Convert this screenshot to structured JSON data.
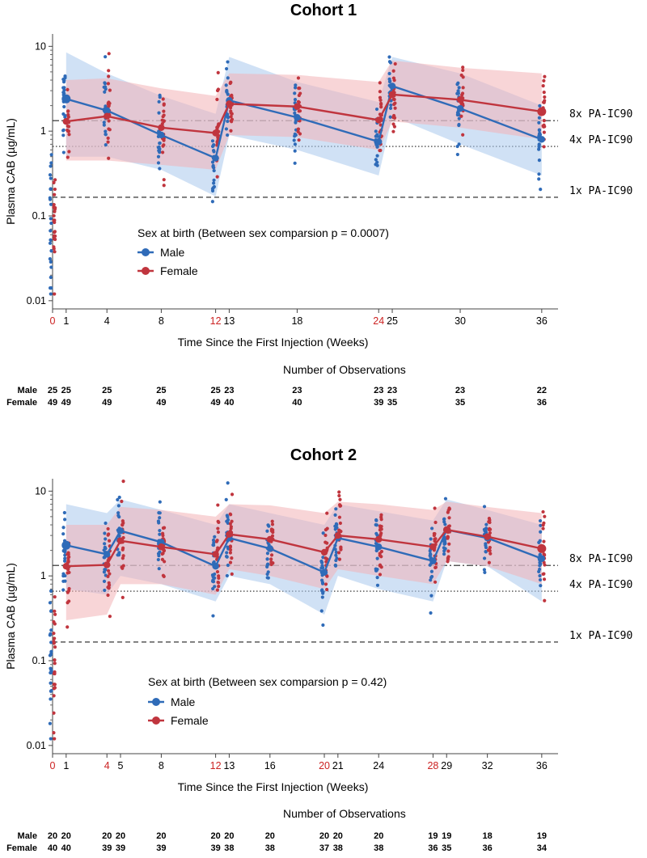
{
  "colors": {
    "male": "#2f6bb8",
    "female": "#c0353e",
    "male_band": "#a9c8ec",
    "female_band": "#f2b3b6",
    "highlight_tick": "#cc2222"
  },
  "chart_data": [
    {
      "type": "line",
      "title": "Cohort 1",
      "xlabel": "Time Since the First Injection (Weeks)",
      "ylabel": "Plasma CAB (µg/mL)",
      "yscale": "log",
      "ylim": [
        0.008,
        14
      ],
      "x_ticks": [
        0,
        1,
        4,
        8,
        12,
        13,
        18,
        24,
        25,
        30,
        36
      ],
      "x_highlight_ticks": [
        0,
        12,
        24
      ],
      "y_ticks": [
        {
          "value": 10,
          "label": "10"
        },
        {
          "value": 1,
          "label": "1"
        },
        {
          "value": 0.1,
          "label": "0.1"
        },
        {
          "value": 0.01,
          "label": "0.01"
        }
      ],
      "reference_lines": [
        {
          "label": "8x PA-IC90",
          "value": 1.33,
          "style": "dash-dot"
        },
        {
          "label": "4x PA-IC90",
          "value": 0.66,
          "style": "dotted"
        },
        {
          "label": "1x PA-IC90",
          "value": 0.166,
          "style": "dashed"
        }
      ],
      "legend_title": "Sex at birth (Between sex comparsion p = 0.0007)",
      "series": [
        {
          "name": "Male",
          "x": [
            1,
            4,
            8,
            12,
            13,
            18,
            24,
            25,
            30,
            36
          ],
          "values": [
            2.4,
            1.75,
            0.9,
            0.48,
            2.3,
            1.45,
            0.75,
            3.4,
            1.85,
            0.8
          ],
          "lower": [
            0.5,
            0.5,
            0.35,
            0.17,
            0.9,
            0.6,
            0.3,
            1.5,
            0.7,
            0.3
          ],
          "upper": [
            8.5,
            4.8,
            2.6,
            1.6,
            7.5,
            3.8,
            2.2,
            7.5,
            4.8,
            2.0
          ]
        },
        {
          "name": "Female",
          "x": [
            1,
            4,
            8,
            12,
            13,
            18,
            24,
            25,
            30,
            36
          ],
          "values": [
            1.3,
            1.5,
            1.1,
            0.95,
            2.1,
            1.95,
            1.35,
            2.7,
            2.35,
            1.7
          ],
          "lower": [
            0.45,
            0.45,
            0.4,
            0.35,
            0.9,
            0.85,
            0.6,
            1.3,
            1.1,
            0.8
          ],
          "upper": [
            4.0,
            4.2,
            3.2,
            2.6,
            4.8,
            4.6,
            3.8,
            6.8,
            5.6,
            4.8
          ]
        }
      ],
      "observations_title": "Number of Observations",
      "observations": {
        "x": [
          0,
          1,
          4,
          8,
          12,
          13,
          18,
          24,
          25,
          30,
          36
        ],
        "Male": [
          "25",
          "25",
          "25",
          "25",
          "25",
          "23",
          "23",
          "23",
          "23",
          "23",
          "22"
        ],
        "Female": [
          "49",
          "49",
          "49",
          "49",
          "49",
          "40",
          "40",
          "39",
          "35",
          "35",
          "36"
        ]
      }
    },
    {
      "type": "line",
      "title": "Cohort 2",
      "xlabel": "Time Since the First Injection (Weeks)",
      "ylabel": "Plasma CAB (µg/mL)",
      "yscale": "log",
      "ylim": [
        0.008,
        14
      ],
      "x_ticks": [
        0,
        1,
        4,
        5,
        8,
        12,
        13,
        16,
        20,
        21,
        24,
        28,
        29,
        32,
        36
      ],
      "x_highlight_ticks": [
        0,
        4,
        12,
        20,
        28
      ],
      "y_ticks": [
        {
          "value": 10,
          "label": "10"
        },
        {
          "value": 1,
          "label": "1"
        },
        {
          "value": 0.1,
          "label": "0.1"
        },
        {
          "value": 0.01,
          "label": "0.01"
        }
      ],
      "reference_lines": [
        {
          "label": "8x PA-IC90",
          "value": 1.33,
          "style": "dash-dot"
        },
        {
          "label": "4x PA-IC90",
          "value": 0.66,
          "style": "dotted"
        },
        {
          "label": "1x PA-IC90",
          "value": 0.166,
          "style": "dashed"
        }
      ],
      "legend_title": "Sex at birth (Between sex comparsion p = 0.42)",
      "series": [
        {
          "name": "Male",
          "x": [
            1,
            4,
            5,
            8,
            12,
            13,
            16,
            20,
            21,
            24,
            28,
            29,
            32,
            36
          ],
          "values": [
            2.3,
            1.8,
            3.4,
            2.5,
            1.3,
            2.8,
            2.1,
            1.1,
            2.8,
            2.2,
            1.5,
            3.5,
            2.8,
            1.6
          ],
          "lower": [
            0.7,
            0.6,
            1.0,
            0.8,
            0.5,
            1.0,
            0.8,
            0.35,
            1.0,
            0.7,
            0.5,
            1.5,
            1.3,
            0.5
          ],
          "upper": [
            7.0,
            5.5,
            8.0,
            6.0,
            4.0,
            7.0,
            5.5,
            4.0,
            7.0,
            5.8,
            4.5,
            8.0,
            6.0,
            4.0
          ]
        },
        {
          "name": "Female",
          "x": [
            1,
            4,
            5,
            8,
            12,
            13,
            16,
            20,
            21,
            24,
            28,
            29,
            32,
            36
          ],
          "values": [
            1.3,
            1.35,
            2.6,
            2.2,
            1.8,
            3.1,
            2.7,
            1.9,
            3.0,
            2.7,
            2.2,
            3.5,
            2.9,
            2.1
          ],
          "lower": [
            0.3,
            0.35,
            0.8,
            0.8,
            0.6,
            1.2,
            1.0,
            0.7,
            1.2,
            1.0,
            0.8,
            1.5,
            1.3,
            0.8
          ],
          "upper": [
            4.0,
            4.0,
            6.5,
            6.0,
            5.0,
            7.0,
            6.8,
            5.5,
            7.5,
            7.0,
            6.0,
            7.5,
            6.5,
            5.5
          ]
        }
      ],
      "observations_title": "Number of Observations",
      "observations": {
        "x": [
          0,
          1,
          4,
          5,
          8,
          12,
          13,
          16,
          20,
          21,
          24,
          28,
          29,
          32,
          36
        ],
        "Male": [
          "20",
          "20",
          "20",
          "20",
          "20",
          "20",
          "20",
          "20",
          "20",
          "20",
          "20",
          "19",
          "19",
          "18",
          "19"
        ],
        "Female": [
          "40",
          "40",
          "39",
          "39",
          "39",
          "39",
          "38",
          "38",
          "37",
          "38",
          "38",
          "36",
          "35",
          "36",
          "34"
        ]
      }
    }
  ]
}
